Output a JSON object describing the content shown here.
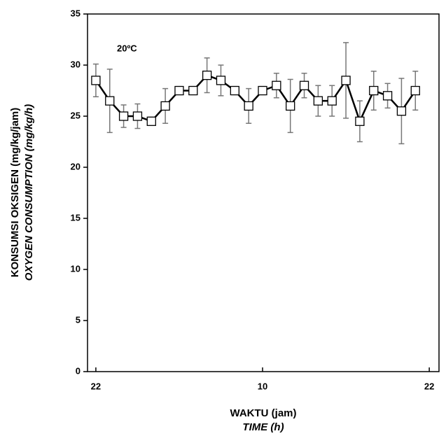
{
  "chart_data": {
    "type": "line",
    "annotation": "20ºC",
    "x_label": "WAKTU (jam)",
    "x_label_2": "TIME (h)",
    "y_label": "KONSUMSI OKSIGEN (mg/kg/jam)",
    "y_label_2": "OXYGEN CONSUMPTION (mg/kg/h)",
    "x": [
      0,
      1,
      2,
      3,
      4,
      5,
      6,
      7,
      8,
      9,
      10,
      11,
      12,
      13,
      14,
      15,
      16,
      17,
      18,
      19,
      20,
      21,
      22,
      23
    ],
    "values": [
      28.5,
      26.5,
      25,
      25,
      24.5,
      26,
      27.5,
      27.5,
      29,
      28.5,
      27.5,
      26,
      27.5,
      28,
      26,
      28,
      26.5,
      26.5,
      28.5,
      24.5,
      27.5,
      27,
      25.5,
      27.5
    ],
    "errors": [
      1.6,
      3.1,
      1.1,
      1.2,
      0.4,
      1.7,
      0.4,
      0.4,
      1.7,
      1.5,
      0.4,
      1.7,
      0.4,
      1.2,
      2.6,
      1.2,
      1.5,
      1.5,
      3.7,
      2.0,
      1.9,
      1.2,
      3.2,
      1.9
    ],
    "color": "#000000",
    "xlim": [
      -0.6,
      24.7
    ],
    "xticks": [
      {
        "value": 0,
        "label": "22"
      },
      {
        "value": 12,
        "label": "10"
      },
      {
        "value": 24,
        "label": "22"
      }
    ],
    "ylim": [
      0,
      35
    ],
    "yticks": [
      0,
      5,
      10,
      15,
      20,
      25,
      30,
      35
    ]
  }
}
